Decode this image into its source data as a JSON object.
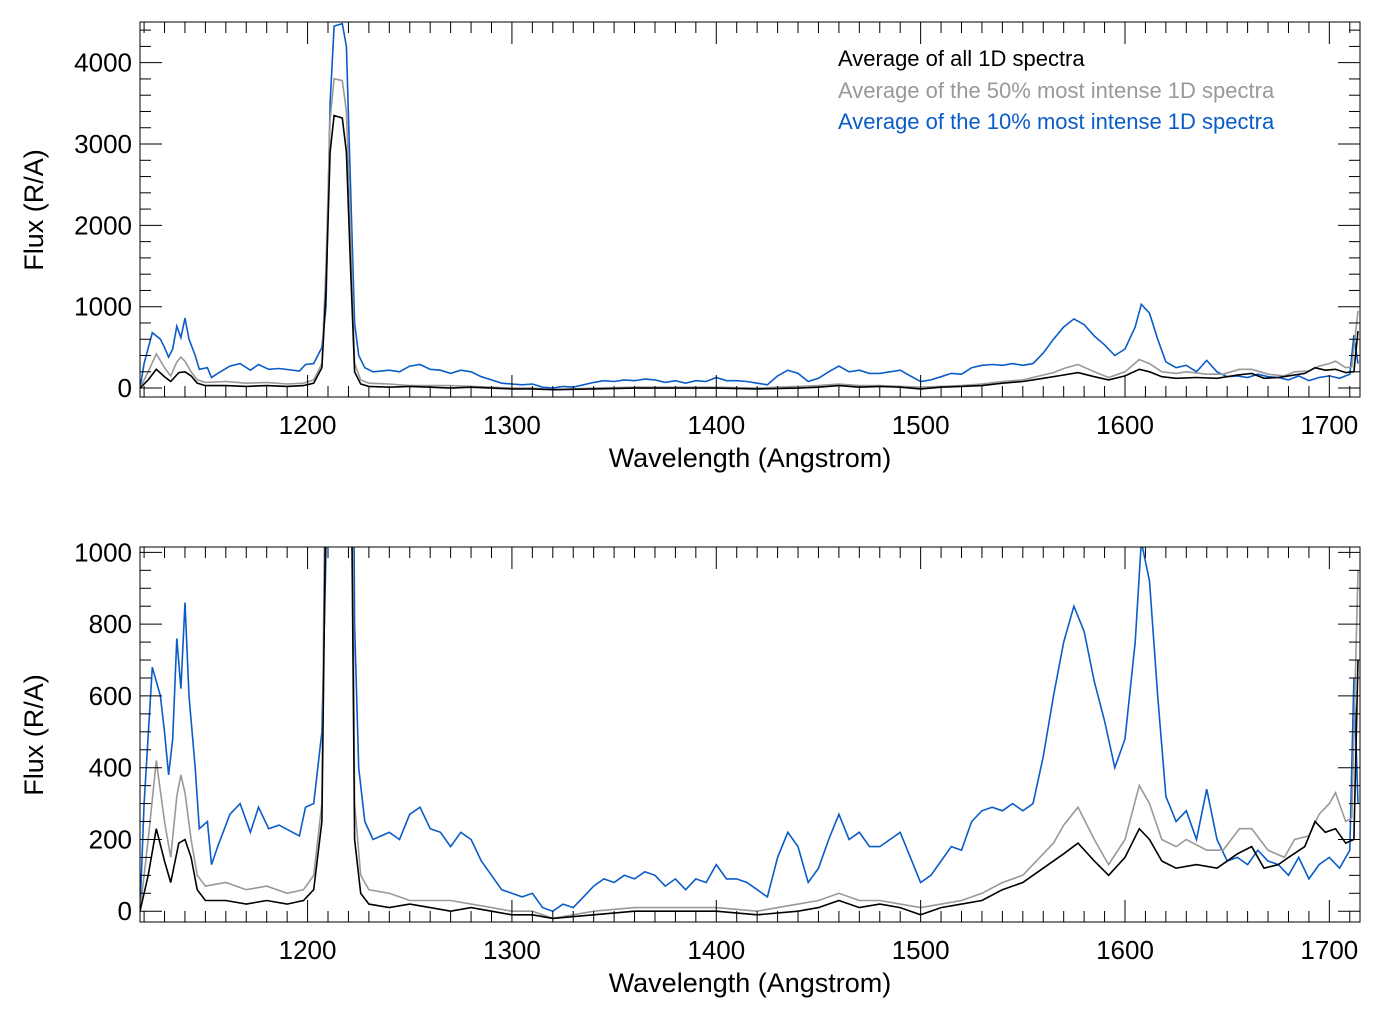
{
  "legend": [
    {
      "label": "Average of all 1D spectra",
      "color": "#000000"
    },
    {
      "label": "Average of the 50% most intense 1D spectra",
      "color": "#999999"
    },
    {
      "label": "Average of the 10% most intense 1D spectra",
      "color": "#0a5cc8"
    }
  ],
  "chart_data": [
    {
      "type": "line",
      "panel": "top",
      "xlabel": "Wavelength (Angstrom)",
      "ylabel": "Flux (R/A)",
      "xlim": [
        1118,
        1715
      ],
      "ylim": [
        -110,
        4500
      ],
      "xticks": [
        1200,
        1300,
        1400,
        1500,
        1600,
        1700
      ],
      "yticks": [
        0,
        1000,
        2000,
        3000,
        4000
      ],
      "legend_position": "top-right"
    },
    {
      "type": "line",
      "panel": "bottom",
      "xlabel": "Wavelength (Angstrom)",
      "ylabel": "Flux (R/A)",
      "xlim": [
        1118,
        1715
      ],
      "ylim": [
        -30,
        1015
      ],
      "xticks": [
        1200,
        1300,
        1400,
        1500,
        1600,
        1700
      ],
      "yticks": [
        0,
        200,
        400,
        600,
        800,
        1000
      ]
    }
  ],
  "series": [
    {
      "name": "Average of all 1D spectra",
      "color": "#000000",
      "points": [
        [
          1118,
          0
        ],
        [
          1122,
          100
        ],
        [
          1126,
          230
        ],
        [
          1130,
          140
        ],
        [
          1133,
          80
        ],
        [
          1137,
          190
        ],
        [
          1140,
          200
        ],
        [
          1143,
          150
        ],
        [
          1146,
          60
        ],
        [
          1150,
          30
        ],
        [
          1160,
          30
        ],
        [
          1170,
          20
        ],
        [
          1180,
          30
        ],
        [
          1190,
          20
        ],
        [
          1198,
          30
        ],
        [
          1203,
          60
        ],
        [
          1207,
          250
        ],
        [
          1209,
          1200
        ],
        [
          1211,
          2900
        ],
        [
          1213,
          3350
        ],
        [
          1217,
          3320
        ],
        [
          1219,
          2900
        ],
        [
          1221,
          1500
        ],
        [
          1223,
          200
        ],
        [
          1226,
          50
        ],
        [
          1230,
          20
        ],
        [
          1240,
          10
        ],
        [
          1250,
          20
        ],
        [
          1260,
          10
        ],
        [
          1270,
          0
        ],
        [
          1280,
          10
        ],
        [
          1290,
          0
        ],
        [
          1300,
          -10
        ],
        [
          1310,
          -10
        ],
        [
          1320,
          -20
        ],
        [
          1340,
          -10
        ],
        [
          1360,
          0
        ],
        [
          1380,
          0
        ],
        [
          1400,
          0
        ],
        [
          1420,
          -10
        ],
        [
          1440,
          0
        ],
        [
          1450,
          10
        ],
        [
          1460,
          30
        ],
        [
          1470,
          10
        ],
        [
          1480,
          20
        ],
        [
          1490,
          10
        ],
        [
          1500,
          -10
        ],
        [
          1510,
          10
        ],
        [
          1520,
          20
        ],
        [
          1530,
          30
        ],
        [
          1540,
          60
        ],
        [
          1550,
          80
        ],
        [
          1560,
          120
        ],
        [
          1570,
          160
        ],
        [
          1577,
          190
        ],
        [
          1585,
          140
        ],
        [
          1592,
          100
        ],
        [
          1600,
          150
        ],
        [
          1607,
          230
        ],
        [
          1612,
          200
        ],
        [
          1618,
          140
        ],
        [
          1625,
          120
        ],
        [
          1635,
          130
        ],
        [
          1645,
          120
        ],
        [
          1655,
          160
        ],
        [
          1662,
          180
        ],
        [
          1668,
          120
        ],
        [
          1675,
          130
        ],
        [
          1680,
          150
        ],
        [
          1688,
          180
        ],
        [
          1693,
          250
        ],
        [
          1698,
          220
        ],
        [
          1703,
          230
        ],
        [
          1708,
          190
        ],
        [
          1712,
          200
        ],
        [
          1714,
          700
        ]
      ]
    },
    {
      "name": "Average of the 50% most intense 1D spectra",
      "color": "#999999",
      "points": [
        [
          1118,
          0
        ],
        [
          1122,
          200
        ],
        [
          1126,
          420
        ],
        [
          1130,
          250
        ],
        [
          1133,
          150
        ],
        [
          1136,
          320
        ],
        [
          1138,
          380
        ],
        [
          1140,
          330
        ],
        [
          1143,
          200
        ],
        [
          1146,
          100
        ],
        [
          1150,
          70
        ],
        [
          1160,
          80
        ],
        [
          1170,
          60
        ],
        [
          1180,
          70
        ],
        [
          1190,
          50
        ],
        [
          1198,
          60
        ],
        [
          1203,
          100
        ],
        [
          1207,
          300
        ],
        [
          1209,
          1500
        ],
        [
          1211,
          3300
        ],
        [
          1213,
          3800
        ],
        [
          1217,
          3780
        ],
        [
          1219,
          3400
        ],
        [
          1221,
          2000
        ],
        [
          1223,
          300
        ],
        [
          1226,
          100
        ],
        [
          1230,
          60
        ],
        [
          1240,
          50
        ],
        [
          1250,
          30
        ],
        [
          1260,
          30
        ],
        [
          1270,
          30
        ],
        [
          1280,
          20
        ],
        [
          1290,
          10
        ],
        [
          1300,
          0
        ],
        [
          1310,
          0
        ],
        [
          1320,
          -20
        ],
        [
          1330,
          -10
        ],
        [
          1340,
          0
        ],
        [
          1360,
          10
        ],
        [
          1380,
          10
        ],
        [
          1400,
          10
        ],
        [
          1420,
          0
        ],
        [
          1430,
          10
        ],
        [
          1440,
          20
        ],
        [
          1450,
          30
        ],
        [
          1460,
          50
        ],
        [
          1470,
          30
        ],
        [
          1480,
          30
        ],
        [
          1490,
          20
        ],
        [
          1500,
          10
        ],
        [
          1510,
          20
        ],
        [
          1520,
          30
        ],
        [
          1530,
          50
        ],
        [
          1540,
          80
        ],
        [
          1550,
          100
        ],
        [
          1560,
          160
        ],
        [
          1565,
          190
        ],
        [
          1570,
          240
        ],
        [
          1577,
          290
        ],
        [
          1585,
          200
        ],
        [
          1592,
          130
        ],
        [
          1600,
          200
        ],
        [
          1607,
          350
        ],
        [
          1612,
          300
        ],
        [
          1618,
          200
        ],
        [
          1625,
          180
        ],
        [
          1630,
          200
        ],
        [
          1640,
          170
        ],
        [
          1648,
          170
        ],
        [
          1656,
          230
        ],
        [
          1662,
          230
        ],
        [
          1670,
          170
        ],
        [
          1678,
          150
        ],
        [
          1683,
          200
        ],
        [
          1690,
          210
        ],
        [
          1695,
          270
        ],
        [
          1700,
          300
        ],
        [
          1703,
          330
        ],
        [
          1708,
          250
        ],
        [
          1711,
          260
        ],
        [
          1714,
          950
        ]
      ]
    },
    {
      "name": "Average of the 10% most intense 1D spectra",
      "color": "#0a5cc8",
      "points": [
        [
          1118,
          0
        ],
        [
          1120,
          300
        ],
        [
          1124,
          680
        ],
        [
          1128,
          600
        ],
        [
          1130,
          500
        ],
        [
          1132,
          380
        ],
        [
          1134,
          480
        ],
        [
          1136,
          760
        ],
        [
          1138,
          620
        ],
        [
          1140,
          860
        ],
        [
          1142,
          600
        ],
        [
          1145,
          400
        ],
        [
          1147,
          230
        ],
        [
          1151,
          250
        ],
        [
          1153,
          130
        ],
        [
          1156,
          180
        ],
        [
          1162,
          270
        ],
        [
          1167,
          300
        ],
        [
          1172,
          220
        ],
        [
          1176,
          290
        ],
        [
          1181,
          230
        ],
        [
          1186,
          240
        ],
        [
          1196,
          210
        ],
        [
          1199,
          290
        ],
        [
          1203,
          300
        ],
        [
          1207,
          500
        ],
        [
          1209,
          1000
        ],
        [
          1211,
          3500
        ],
        [
          1213,
          4450
        ],
        [
          1217,
          4480
        ],
        [
          1219,
          4200
        ],
        [
          1221,
          2500
        ],
        [
          1223,
          800
        ],
        [
          1225,
          400
        ],
        [
          1228,
          250
        ],
        [
          1232,
          200
        ],
        [
          1240,
          220
        ],
        [
          1245,
          200
        ],
        [
          1250,
          270
        ],
        [
          1255,
          290
        ],
        [
          1260,
          230
        ],
        [
          1265,
          220
        ],
        [
          1270,
          180
        ],
        [
          1275,
          220
        ],
        [
          1280,
          200
        ],
        [
          1285,
          140
        ],
        [
          1290,
          100
        ],
        [
          1295,
          60
        ],
        [
          1300,
          50
        ],
        [
          1305,
          40
        ],
        [
          1310,
          50
        ],
        [
          1315,
          10
        ],
        [
          1320,
          0
        ],
        [
          1325,
          20
        ],
        [
          1330,
          10
        ],
        [
          1335,
          40
        ],
        [
          1340,
          70
        ],
        [
          1345,
          90
        ],
        [
          1350,
          80
        ],
        [
          1355,
          100
        ],
        [
          1360,
          90
        ],
        [
          1365,
          110
        ],
        [
          1370,
          100
        ],
        [
          1375,
          70
        ],
        [
          1380,
          90
        ],
        [
          1385,
          60
        ],
        [
          1390,
          90
        ],
        [
          1395,
          80
        ],
        [
          1400,
          130
        ],
        [
          1405,
          90
        ],
        [
          1410,
          90
        ],
        [
          1415,
          80
        ],
        [
          1420,
          60
        ],
        [
          1425,
          40
        ],
        [
          1430,
          150
        ],
        [
          1435,
          220
        ],
        [
          1440,
          180
        ],
        [
          1445,
          80
        ],
        [
          1450,
          120
        ],
        [
          1455,
          200
        ],
        [
          1460,
          270
        ],
        [
          1465,
          200
        ],
        [
          1470,
          220
        ],
        [
          1475,
          180
        ],
        [
          1480,
          180
        ],
        [
          1485,
          200
        ],
        [
          1490,
          220
        ],
        [
          1495,
          150
        ],
        [
          1500,
          80
        ],
        [
          1505,
          100
        ],
        [
          1510,
          140
        ],
        [
          1515,
          180
        ],
        [
          1520,
          170
        ],
        [
          1525,
          250
        ],
        [
          1530,
          280
        ],
        [
          1535,
          290
        ],
        [
          1540,
          280
        ],
        [
          1545,
          300
        ],
        [
          1550,
          280
        ],
        [
          1555,
          300
        ],
        [
          1560,
          430
        ],
        [
          1565,
          600
        ],
        [
          1570,
          750
        ],
        [
          1575,
          850
        ],
        [
          1580,
          780
        ],
        [
          1585,
          640
        ],
        [
          1590,
          530
        ],
        [
          1595,
          400
        ],
        [
          1600,
          480
        ],
        [
          1605,
          750
        ],
        [
          1608,
          1030
        ],
        [
          1612,
          920
        ],
        [
          1616,
          600
        ],
        [
          1620,
          320
        ],
        [
          1625,
          250
        ],
        [
          1630,
          280
        ],
        [
          1635,
          200
        ],
        [
          1640,
          340
        ],
        [
          1645,
          200
        ],
        [
          1650,
          140
        ],
        [
          1655,
          150
        ],
        [
          1660,
          130
        ],
        [
          1665,
          170
        ],
        [
          1670,
          140
        ],
        [
          1675,
          130
        ],
        [
          1680,
          100
        ],
        [
          1685,
          150
        ],
        [
          1690,
          90
        ],
        [
          1695,
          130
        ],
        [
          1700,
          150
        ],
        [
          1705,
          120
        ],
        [
          1710,
          170
        ],
        [
          1712,
          650
        ],
        [
          1714,
          300
        ]
      ]
    }
  ]
}
